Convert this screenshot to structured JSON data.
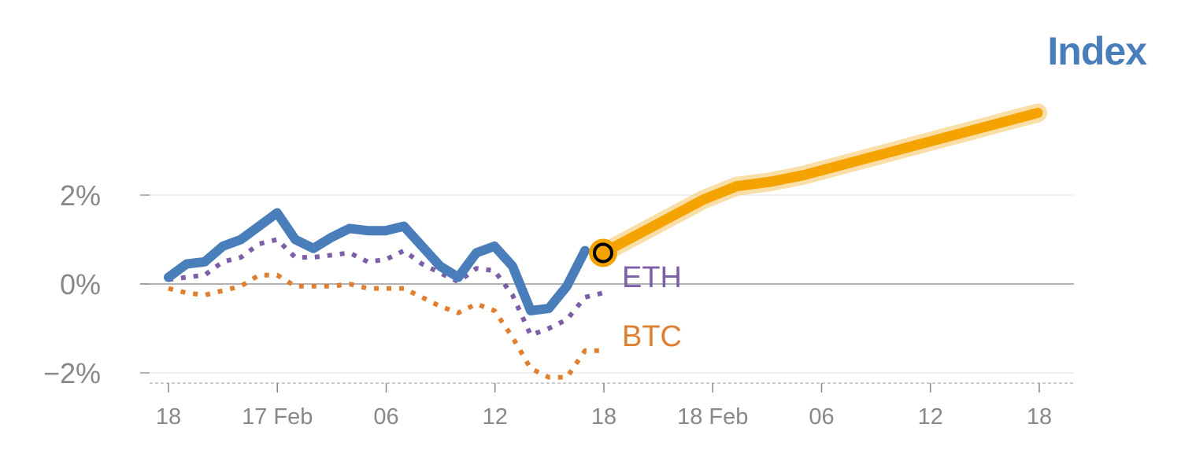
{
  "chart_data": {
    "type": "line",
    "title": "Index",
    "colors": {
      "index": "#4a7ebb",
      "forecast": "#f5a300",
      "forecast_halo": "#f8d38a",
      "eth": "#7d5ea8",
      "btc": "#e07f2f",
      "axis": "#888888",
      "grid": "#e6e6e6",
      "zero": "#999999"
    },
    "y_ticks": [
      {
        "value": 2,
        "label": "2%"
      },
      {
        "value": 0,
        "label": "0%"
      },
      {
        "value": -2,
        "label": "−2%"
      }
    ],
    "x_ticks": [
      "18",
      "17 Feb",
      "06",
      "12",
      "18",
      "18 Feb",
      "06",
      "12",
      "18"
    ],
    "ylim": [
      -2.25,
      4.0
    ],
    "grid": true,
    "series": [
      {
        "key": "index",
        "style": "solid",
        "values": [
          0.15,
          0.45,
          0.5,
          0.85,
          1.0,
          1.3,
          1.6,
          1.0,
          0.8,
          1.05,
          1.25,
          1.2,
          1.2,
          1.3,
          0.85,
          0.4,
          0.15,
          0.7,
          0.85,
          0.4,
          -0.6,
          -0.55,
          -0.05,
          0.75
        ]
      },
      {
        "key": "eth",
        "name": "ETH",
        "style": "dotted",
        "values": [
          0.1,
          0.15,
          0.2,
          0.5,
          0.6,
          0.9,
          1.0,
          0.6,
          0.6,
          0.65,
          0.7,
          0.5,
          0.55,
          0.75,
          0.45,
          0.25,
          0.05,
          0.35,
          0.3,
          -0.25,
          -1.15,
          -1.0,
          -0.8,
          -0.3,
          -0.2
        ]
      },
      {
        "key": "btc",
        "name": "BTC",
        "style": "dotted",
        "values": [
          -0.1,
          -0.2,
          -0.25,
          -0.15,
          -0.05,
          0.2,
          0.2,
          -0.05,
          -0.05,
          -0.05,
          0.0,
          -0.1,
          -0.1,
          -0.1,
          -0.3,
          -0.5,
          -0.65,
          -0.45,
          -0.6,
          -1.2,
          -1.9,
          -2.1,
          -2.1,
          -1.5,
          -1.5
        ]
      },
      {
        "key": "forecast",
        "style": "highlight",
        "values": [
          0.7,
          1.1,
          1.5,
          1.9,
          2.2,
          2.3,
          2.45,
          2.65,
          2.85,
          3.05,
          3.25,
          3.45,
          3.65,
          3.85
        ]
      }
    ],
    "marker_value": 0.7
  }
}
